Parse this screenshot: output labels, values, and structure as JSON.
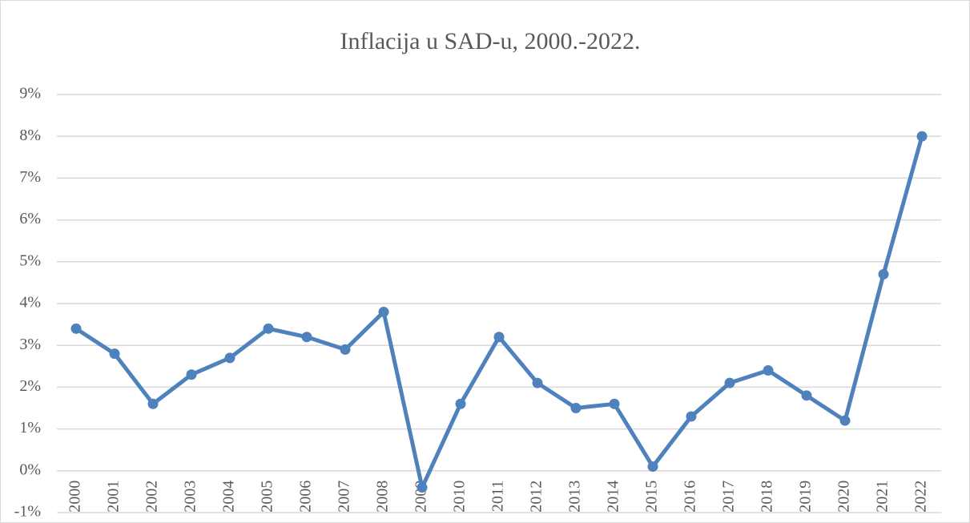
{
  "chart_data": {
    "type": "line",
    "title": "Inflacija u SAD-u, 2000.-2022.",
    "categories": [
      "2000",
      "2001",
      "2002",
      "2003",
      "2004",
      "2005",
      "2006",
      "2007",
      "2008",
      "2009",
      "2010",
      "2011",
      "2012",
      "2013",
      "2014",
      "2015",
      "2016",
      "2017",
      "2018",
      "2019",
      "2020",
      "2021",
      "2022"
    ],
    "series": [
      {
        "name": "Inflacija",
        "color": "#4f81bd",
        "values": [
          3.4,
          2.8,
          1.6,
          2.3,
          2.7,
          3.4,
          3.2,
          2.9,
          3.8,
          -0.4,
          1.6,
          3.2,
          2.1,
          1.5,
          1.6,
          0.1,
          1.3,
          2.1,
          2.4,
          1.8,
          1.2,
          4.7,
          8.0
        ]
      }
    ],
    "ylim": [
      -1,
      9
    ],
    "yticks": [
      {
        "value": -1,
        "label": "-1%"
      },
      {
        "value": 0,
        "label": "0%"
      },
      {
        "value": 1,
        "label": "1%"
      },
      {
        "value": 2,
        "label": "2%"
      },
      {
        "value": 3,
        "label": "3%"
      },
      {
        "value": 4,
        "label": "4%"
      },
      {
        "value": 5,
        "label": "5%"
      },
      {
        "value": 6,
        "label": "6%"
      },
      {
        "value": 7,
        "label": "7%"
      },
      {
        "value": 8,
        "label": "8%"
      },
      {
        "value": 9,
        "label": "9%"
      }
    ],
    "grid": true
  }
}
